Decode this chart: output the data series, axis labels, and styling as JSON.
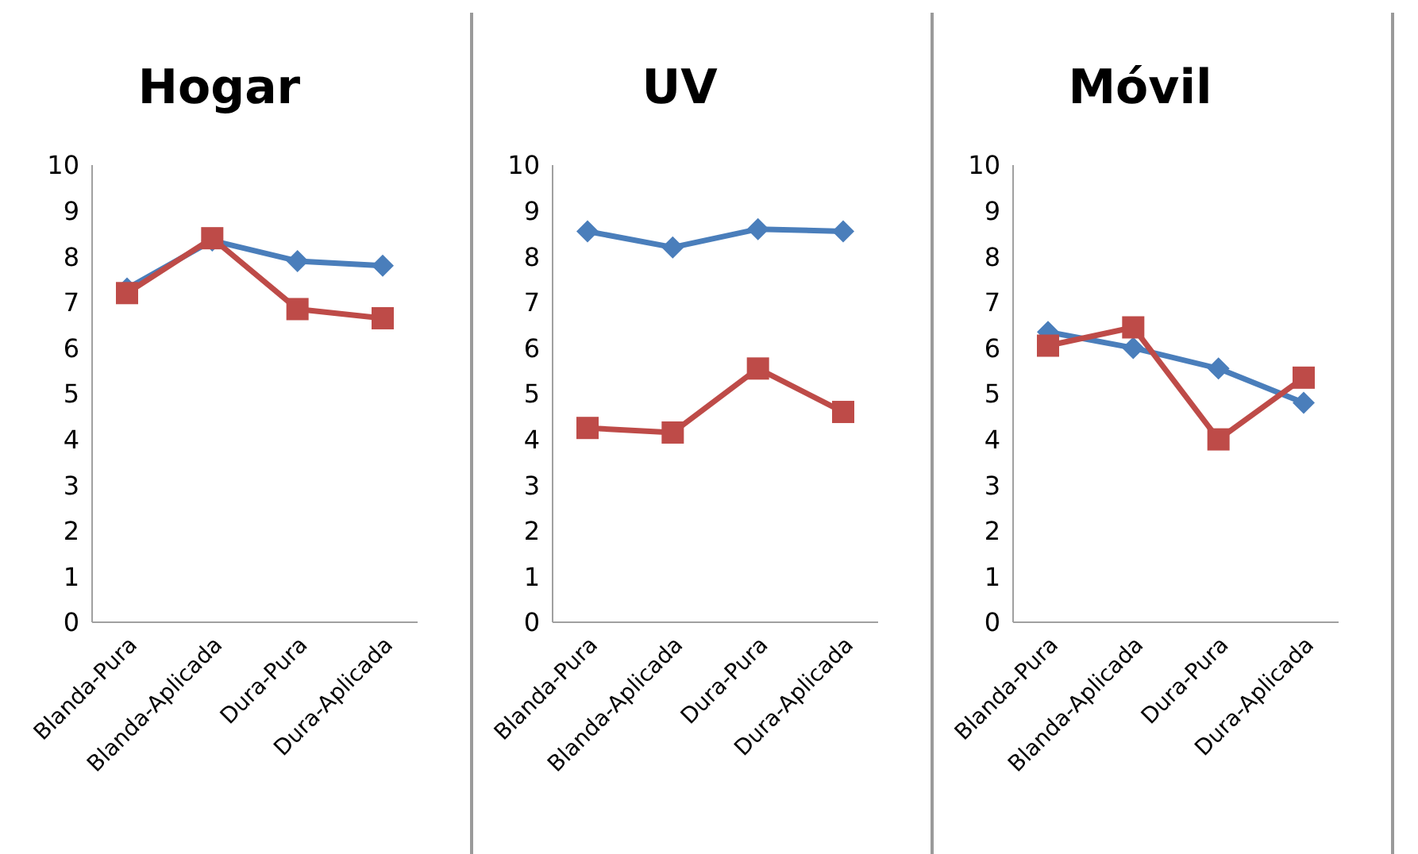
{
  "chart_data": [
    {
      "type": "line",
      "title": "Hogar",
      "categories": [
        "Blanda-Pura",
        "Blanda-Aplicada",
        "Dura-Pura",
        "Dura-Aplicada"
      ],
      "ylim": [
        0,
        10
      ],
      "yticks": [
        0,
        1,
        2,
        3,
        4,
        5,
        6,
        7,
        8,
        9,
        10
      ],
      "series": [
        {
          "color": "#4a7ebb",
          "marker": "diamond",
          "values": [
            7.3,
            8.35,
            7.9,
            7.8
          ]
        },
        {
          "color": "#be4b48",
          "marker": "square",
          "values": [
            7.2,
            8.4,
            6.85,
            6.65
          ]
        }
      ]
    },
    {
      "type": "line",
      "title": "UV",
      "categories": [
        "Blanda-Pura",
        "Blanda-Aplicada",
        "Dura-Pura",
        "Dura-Aplicada"
      ],
      "ylim": [
        0,
        10
      ],
      "yticks": [
        0,
        1,
        2,
        3,
        4,
        5,
        6,
        7,
        8,
        9,
        10
      ],
      "series": [
        {
          "color": "#4a7ebb",
          "marker": "diamond",
          "values": [
            8.55,
            8.2,
            8.6,
            8.55
          ]
        },
        {
          "color": "#be4b48",
          "marker": "square",
          "values": [
            4.25,
            4.15,
            5.55,
            4.6
          ]
        }
      ]
    },
    {
      "type": "line",
      "title": "Móvil",
      "categories": [
        "Blanda-Pura",
        "Blanda-Aplicada",
        "Dura-Pura",
        "Dura-Aplicada"
      ],
      "ylim": [
        0,
        10
      ],
      "yticks": [
        0,
        1,
        2,
        3,
        4,
        5,
        6,
        7,
        8,
        9,
        10
      ],
      "series": [
        {
          "color": "#4a7ebb",
          "marker": "diamond",
          "values": [
            6.35,
            6.0,
            5.55,
            4.8
          ]
        },
        {
          "color": "#be4b48",
          "marker": "square",
          "values": [
            6.05,
            6.45,
            4.0,
            5.35
          ]
        }
      ]
    }
  ]
}
